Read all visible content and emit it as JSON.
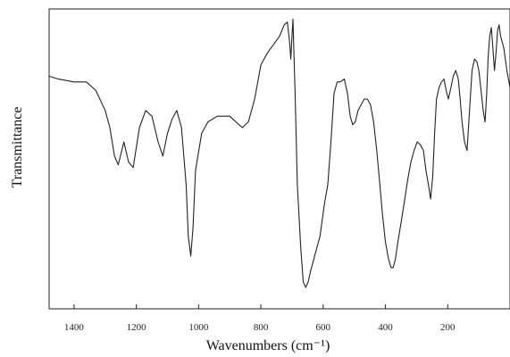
{
  "chart_data": {
    "type": "line",
    "xlabel": "Wavenumbers (cm⁻¹)",
    "ylabel": "Transmittance",
    "x_reversed": true,
    "xlim": [
      1480,
      0
    ],
    "ylim": [
      0,
      100
    ],
    "grid": false,
    "y_ticks_labeled": false,
    "x_ticks": [
      1400,
      1200,
      1000,
      800,
      600,
      400,
      200
    ],
    "x_tick_labels": [
      "1400",
      "1200",
      "1000",
      "800",
      "600",
      "400",
      "200"
    ],
    "series": [
      {
        "x": [
          1480,
          1450,
          1400,
          1360,
          1330,
          1300,
          1285,
          1270,
          1258,
          1240,
          1225,
          1210,
          1190,
          1170,
          1150,
          1130,
          1115,
          1100,
          1085,
          1070,
          1055,
          1040,
          1033,
          1025,
          1018,
          1010,
          990,
          970,
          940,
          900,
          860,
          840,
          820,
          800,
          780,
          760,
          740,
          725,
          715,
          708,
          704,
          700,
          697,
          690,
          683,
          672,
          664,
          656,
          648,
          640,
          630,
          620,
          610,
          600,
          595,
          585,
          575,
          565,
          555,
          545,
          532,
          522,
          513,
          505,
          497,
          488,
          478,
          468,
          458,
          448,
          438,
          428,
          418,
          410,
          400,
          390,
          382,
          375,
          368,
          360,
          348,
          338,
          328,
          318,
          308,
          298,
          288,
          278,
          270,
          262,
          255,
          248,
          242,
          236,
          228,
          220,
          212,
          205,
          198,
          190,
          182,
          174,
          166,
          160,
          154,
          146,
          138,
          130,
          122,
          114,
          106,
          100,
          93,
          86,
          80,
          75,
          70,
          65,
          60,
          55,
          50,
          45,
          40,
          35,
          30,
          20,
          10,
          0
        ],
        "y": [
          78,
          77,
          76,
          76,
          73,
          66,
          60,
          50,
          47,
          55,
          48,
          46,
          60,
          66,
          64,
          55,
          50,
          58,
          63,
          66,
          60,
          40,
          22,
          15,
          25,
          45,
          58,
          62,
          64,
          64,
          60,
          62,
          70,
          82,
          86,
          89,
          92,
          96,
          97,
          90,
          84,
          92,
          98,
          72,
          40,
          18,
          6,
          4,
          6,
          10,
          14,
          18,
          22,
          30,
          34,
          40,
          55,
          72,
          76,
          76,
          77,
          72,
          64,
          61,
          62,
          66,
          68,
          70,
          70,
          68,
          62,
          52,
          40,
          30,
          20,
          14,
          11,
          11,
          14,
          20,
          28,
          35,
          42,
          48,
          52,
          55,
          54,
          52,
          45,
          40,
          35,
          43,
          58,
          70,
          74,
          76,
          77,
          73,
          70,
          74,
          78,
          80,
          77,
          70,
          62,
          55,
          52,
          66,
          80,
          84,
          83,
          80,
          73,
          66,
          62,
          72,
          85,
          92,
          95,
          88,
          80,
          86,
          94,
          96,
          92,
          88,
          80,
          74
        ]
      }
    ]
  }
}
